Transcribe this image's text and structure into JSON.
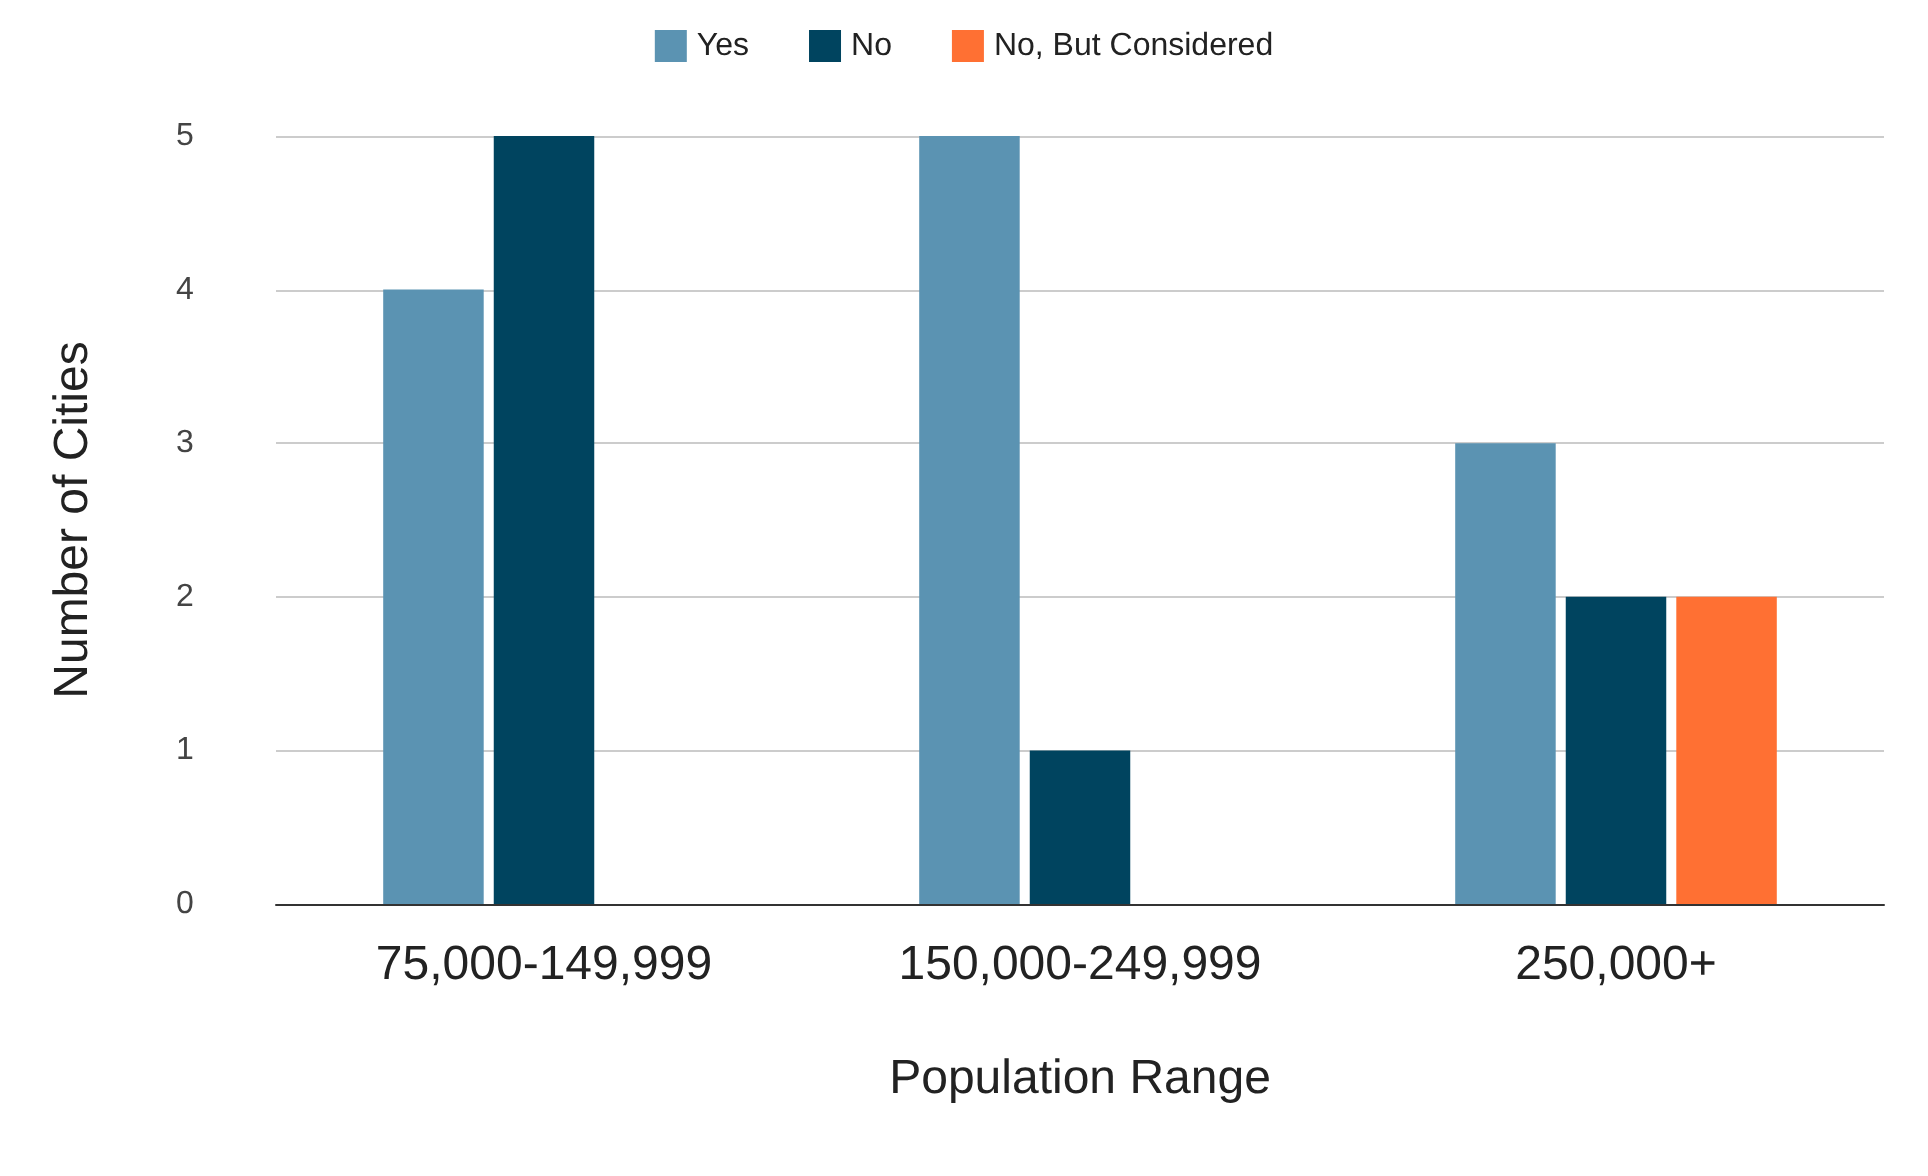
{
  "chart_data": {
    "type": "bar",
    "xlabel": "Population Range",
    "ylabel": "Number of Cities",
    "categories": [
      "75,000-149,999",
      "150,000-249,999",
      "250,000+"
    ],
    "series": [
      {
        "name": "Yes",
        "color": "#5b93b2",
        "values": [
          4,
          5,
          3
        ]
      },
      {
        "name": "No",
        "color": "#00445f",
        "values": [
          5,
          1,
          2
        ]
      },
      {
        "name": "No, But Considered",
        "color": "#ff7033",
        "values": [
          0,
          0,
          2
        ]
      }
    ],
    "ylim": [
      0,
      5
    ],
    "yticks": [
      0,
      1,
      2,
      3,
      4,
      5
    ],
    "grid": "y",
    "legend": "top"
  }
}
